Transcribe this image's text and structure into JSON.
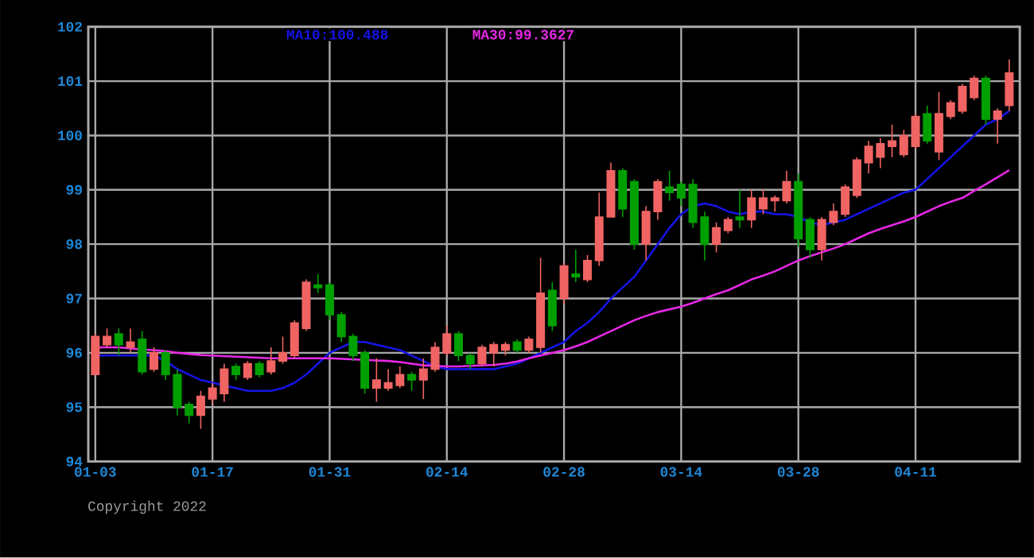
{
  "chart_data": {
    "type": "candlestick",
    "categories": [
      "01-03",
      null,
      null,
      null,
      null,
      null,
      null,
      null,
      null,
      null,
      "01-17",
      null,
      null,
      null,
      null,
      null,
      null,
      null,
      null,
      null,
      "01-31",
      null,
      null,
      null,
      null,
      null,
      null,
      null,
      null,
      null,
      "02-14",
      null,
      null,
      null,
      null,
      null,
      null,
      null,
      null,
      null,
      "02-28",
      null,
      null,
      null,
      null,
      null,
      null,
      null,
      null,
      null,
      "03-14",
      null,
      null,
      null,
      null,
      null,
      null,
      null,
      null,
      null,
      "03-28",
      null,
      null,
      null,
      null,
      null,
      null,
      null,
      null,
      null,
      "04-11",
      null,
      null,
      null,
      null,
      null,
      null,
      null,
      null
    ],
    "ohlc": [
      [
        95.6,
        96.35,
        95.6,
        96.3
      ],
      [
        96.15,
        96.45,
        96.1,
        96.3
      ],
      [
        96.35,
        96.45,
        95.95,
        96.15
      ],
      [
        96.1,
        96.45,
        96.0,
        96.2
      ],
      [
        96.25,
        96.4,
        95.6,
        95.65
      ],
      [
        95.7,
        96.1,
        95.65,
        96.0
      ],
      [
        96.0,
        96.05,
        95.5,
        95.6
      ],
      [
        95.6,
        95.7,
        94.85,
        95.0
      ],
      [
        95.05,
        95.1,
        94.7,
        94.85
      ],
      [
        94.85,
        95.3,
        94.6,
        95.2
      ],
      [
        95.15,
        95.45,
        95.05,
        95.35
      ],
      [
        95.25,
        95.8,
        95.1,
        95.7
      ],
      [
        95.75,
        95.8,
        95.5,
        95.6
      ],
      [
        95.55,
        95.85,
        95.5,
        95.8
      ],
      [
        95.8,
        95.85,
        95.55,
        95.6
      ],
      [
        95.65,
        96.1,
        95.6,
        95.85
      ],
      [
        95.85,
        96.3,
        95.8,
        96.0
      ],
      [
        95.95,
        96.6,
        95.9,
        96.55
      ],
      [
        96.45,
        97.35,
        96.4,
        97.3
      ],
      [
        97.25,
        97.45,
        97.1,
        97.2
      ],
      [
        97.25,
        97.3,
        96.6,
        96.7
      ],
      [
        96.7,
        96.75,
        96.2,
        96.3
      ],
      [
        96.3,
        96.35,
        95.85,
        95.95
      ],
      [
        96.0,
        96.05,
        95.25,
        95.35
      ],
      [
        95.35,
        95.9,
        95.1,
        95.5
      ],
      [
        95.35,
        95.7,
        95.3,
        95.45
      ],
      [
        95.4,
        95.75,
        95.35,
        95.6
      ],
      [
        95.6,
        95.65,
        95.3,
        95.5
      ],
      [
        95.5,
        95.9,
        95.15,
        95.7
      ],
      [
        95.7,
        96.2,
        95.65,
        96.1
      ],
      [
        96.0,
        96.5,
        95.95,
        96.35
      ],
      [
        96.35,
        96.4,
        95.85,
        95.95
      ],
      [
        95.95,
        96.0,
        95.7,
        95.8
      ],
      [
        95.8,
        96.15,
        95.75,
        96.1
      ],
      [
        96.0,
        96.2,
        95.75,
        96.15
      ],
      [
        96.05,
        96.2,
        95.95,
        96.15
      ],
      [
        96.2,
        96.25,
        96.0,
        96.05
      ],
      [
        96.05,
        96.3,
        96.0,
        96.25
      ],
      [
        96.1,
        97.75,
        96.0,
        97.1
      ],
      [
        97.15,
        97.3,
        96.4,
        96.5
      ],
      [
        97.0,
        97.65,
        96.9,
        97.6
      ],
      [
        97.45,
        97.9,
        97.3,
        97.4
      ],
      [
        97.35,
        97.8,
        97.3,
        97.7
      ],
      [
        97.7,
        98.95,
        97.6,
        98.5
      ],
      [
        98.5,
        99.5,
        98.5,
        99.35
      ],
      [
        99.35,
        99.4,
        98.5,
        98.65
      ],
      [
        99.15,
        99.2,
        97.9,
        98.0
      ],
      [
        98.0,
        98.7,
        97.7,
        98.6
      ],
      [
        98.6,
        99.2,
        98.45,
        99.15
      ],
      [
        99.05,
        99.35,
        98.8,
        98.95
      ],
      [
        99.1,
        99.15,
        98.7,
        98.85
      ],
      [
        99.1,
        99.2,
        98.3,
        98.4
      ],
      [
        98.5,
        98.6,
        97.7,
        98.0
      ],
      [
        98.0,
        98.4,
        97.85,
        98.3
      ],
      [
        98.25,
        98.5,
        98.2,
        98.45
      ],
      [
        98.5,
        99.0,
        98.3,
        98.45
      ],
      [
        98.45,
        99.0,
        98.3,
        98.85
      ],
      [
        98.65,
        99.0,
        98.55,
        98.85
      ],
      [
        98.8,
        98.9,
        98.6,
        98.85
      ],
      [
        98.8,
        99.35,
        98.75,
        99.15
      ],
      [
        99.15,
        99.3,
        97.95,
        98.1
      ],
      [
        98.45,
        98.5,
        97.75,
        97.9
      ],
      [
        97.9,
        98.5,
        97.7,
        98.45
      ],
      [
        98.4,
        98.75,
        98.35,
        98.6
      ],
      [
        98.55,
        99.1,
        98.5,
        99.05
      ],
      [
        98.9,
        99.6,
        98.85,
        99.55
      ],
      [
        99.5,
        99.9,
        99.3,
        99.8
      ],
      [
        99.6,
        99.95,
        99.4,
        99.85
      ],
      [
        99.8,
        100.2,
        99.6,
        99.9
      ],
      [
        99.65,
        100.1,
        99.6,
        100.0
      ],
      [
        99.8,
        100.4,
        99.75,
        100.35
      ],
      [
        100.4,
        100.55,
        99.85,
        99.9
      ],
      [
        99.7,
        100.8,
        99.55,
        100.4
      ],
      [
        100.35,
        100.65,
        100.3,
        100.6
      ],
      [
        100.45,
        100.95,
        100.4,
        100.9
      ],
      [
        100.7,
        101.1,
        100.65,
        101.05
      ],
      [
        101.05,
        101.1,
        100.2,
        100.3
      ],
      [
        100.3,
        100.5,
        99.85,
        100.45
      ],
      [
        100.55,
        101.4,
        100.45,
        101.15
      ]
    ],
    "series": [
      {
        "name": "MA10:100.488",
        "type": "line",
        "color": "#1414e6",
        "values": [
          95.95,
          95.95,
          95.95,
          95.95,
          95.95,
          95.95,
          95.85,
          95.7,
          95.6,
          95.5,
          95.45,
          95.4,
          95.35,
          95.3,
          95.3,
          95.3,
          95.35,
          95.45,
          95.6,
          95.8,
          96.0,
          96.1,
          96.2,
          96.2,
          96.15,
          96.1,
          96.05,
          95.95,
          95.85,
          95.75,
          95.7,
          95.7,
          95.7,
          95.7,
          95.7,
          95.75,
          95.8,
          95.9,
          96.0,
          96.1,
          96.2,
          96.4,
          96.55,
          96.75,
          97.0,
          97.2,
          97.4,
          97.7,
          98.0,
          98.3,
          98.55,
          98.7,
          98.75,
          98.7,
          98.6,
          98.55,
          98.6,
          98.6,
          98.55,
          98.55,
          98.5,
          98.4,
          98.35,
          98.4,
          98.45,
          98.55,
          98.65,
          98.75,
          98.85,
          98.95,
          99.0,
          99.2,
          99.4,
          99.6,
          99.8,
          100.0,
          100.2,
          100.3,
          100.45
        ]
      },
      {
        "name": "MA30:99.3627",
        "type": "line",
        "color": "#e628e6",
        "values": [
          96.1,
          96.1,
          96.1,
          96.08,
          96.06,
          96.05,
          96.03,
          96.0,
          95.98,
          95.96,
          95.95,
          95.94,
          95.93,
          95.92,
          95.91,
          95.9,
          95.9,
          95.9,
          95.9,
          95.9,
          95.9,
          95.89,
          95.88,
          95.87,
          95.86,
          95.85,
          95.83,
          95.8,
          95.77,
          95.76,
          95.75,
          95.75,
          95.76,
          95.77,
          95.78,
          95.8,
          95.84,
          95.9,
          95.95,
          96.0,
          96.05,
          96.12,
          96.2,
          96.3,
          96.4,
          96.5,
          96.6,
          96.68,
          96.75,
          96.8,
          96.85,
          96.92,
          97.0,
          97.08,
          97.15,
          97.25,
          97.35,
          97.42,
          97.5,
          97.6,
          97.7,
          97.78,
          97.85,
          97.92,
          98.0,
          98.1,
          98.2,
          98.28,
          98.35,
          98.42,
          98.5,
          98.6,
          98.7,
          98.78,
          98.85,
          98.98,
          99.1,
          99.23,
          99.36
        ]
      }
    ],
    "ylim": [
      94,
      102
    ],
    "yticks": [
      94,
      95,
      96,
      97,
      98,
      99,
      100,
      101,
      102
    ],
    "grid": true,
    "legend": "top",
    "annotations": [
      "Copyright 2022"
    ]
  }
}
